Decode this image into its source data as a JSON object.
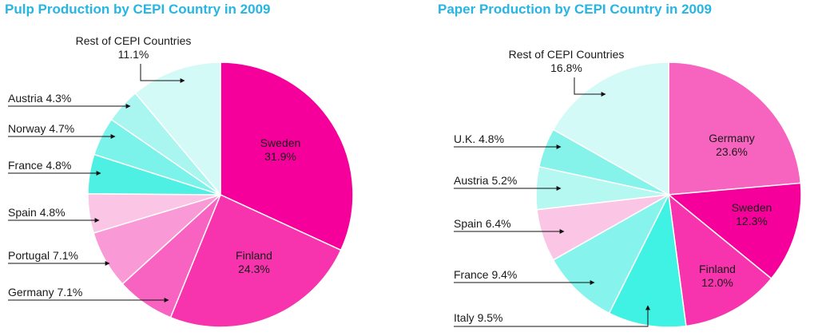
{
  "chart_data": [
    {
      "type": "pie",
      "title": "Pulp Production by CEPI Country in 2009",
      "slices": [
        {
          "label": "Sweden",
          "value": 31.9,
          "color": "#f5009a"
        },
        {
          "label": "Finland",
          "value": 24.3,
          "color": "#f733ae"
        },
        {
          "label": "Germany",
          "value": 7.1,
          "color": "#f862c0"
        },
        {
          "label": "Portugal",
          "value": 7.1,
          "color": "#f99ad6"
        },
        {
          "label": "Spain",
          "value": 4.8,
          "color": "#fbc5e6"
        },
        {
          "label": "France",
          "value": 4.8,
          "color": "#4df0e3"
        },
        {
          "label": "Norway",
          "value": 4.7,
          "color": "#7bf3ea"
        },
        {
          "label": "Austria",
          "value": 4.3,
          "color": "#a9f6f0"
        },
        {
          "label": "Rest of CEPI Countries",
          "value": 11.1,
          "color": "#d3faf7"
        }
      ],
      "labels": {
        "rest": {
          "name": "Rest of CEPI Countries",
          "value": "11.1%"
        },
        "austria": "Austria 4.3%",
        "norway": "Norway 4.7%",
        "france": "France 4.8%",
        "spain": "Spain 4.8%",
        "portugal": "Portugal 7.1%",
        "germany": "Germany 7.1%",
        "sweden": {
          "name": "Sweden",
          "value": "31.9%"
        },
        "finland": {
          "name": "Finland",
          "value": "24.3%"
        }
      }
    },
    {
      "type": "pie",
      "title": "Paper Production by CEPI Country in 2009",
      "slices": [
        {
          "label": "Germany",
          "value": 23.6,
          "color": "#f764bf"
        },
        {
          "label": "Sweden",
          "value": 12.3,
          "color": "#f5009a"
        },
        {
          "label": "Finland",
          "value": 12.0,
          "color": "#f733ae"
        },
        {
          "label": "Italy",
          "value": 9.5,
          "color": "#3ff2e3"
        },
        {
          "label": "France",
          "value": 9.4,
          "color": "#86f4ec"
        },
        {
          "label": "Spain",
          "value": 6.4,
          "color": "#fbc5e6"
        },
        {
          "label": "Austria",
          "value": 5.2,
          "color": "#b5f7f1"
        },
        {
          "label": "U.K.",
          "value": 4.8,
          "color": "#85f3ea"
        },
        {
          "label": "Rest of CEPI Countries",
          "value": 16.8,
          "color": "#d4faf7"
        }
      ],
      "labels": {
        "rest": {
          "name": "Rest of CEPI Countries",
          "value": "16.8%"
        },
        "uk": "U.K. 4.8%",
        "austria": "Austria  5.2%",
        "spain": "Spain  6.4%",
        "france": "France  9.4%",
        "italy": "Italy  9.5%",
        "germany": {
          "name": "Germany",
          "value": "23.6%"
        },
        "sweden": {
          "name": "Sweden",
          "value": "12.3%"
        },
        "finland": {
          "name": "Finland",
          "value": "12.0%"
        }
      }
    }
  ]
}
